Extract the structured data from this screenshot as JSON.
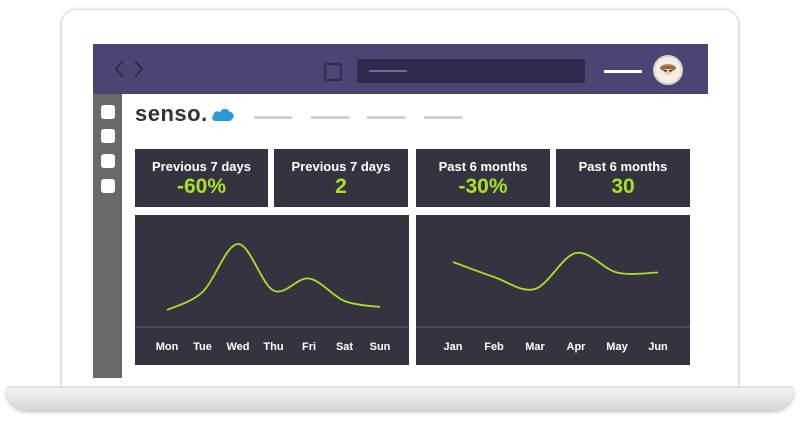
{
  "app": {
    "logo_text": "senso.",
    "logo_icon": "cloud-icon"
  },
  "colors": {
    "topbar": "#4a4673",
    "panel": "#363341",
    "accent": "#a6e22a",
    "sidebar": "#696969"
  },
  "stats": [
    {
      "label": "Previous 7 days",
      "value": "-60%"
    },
    {
      "label": "Previous 7 days",
      "value": "2"
    },
    {
      "label": "Past 6 months",
      "value": "-30%"
    },
    {
      "label": "Past 6 months",
      "value": "30"
    }
  ],
  "chart_data": [
    {
      "type": "line",
      "categories": [
        "Mon",
        "Tue",
        "Wed",
        "Thu",
        "Fri",
        "Sat",
        "Sun"
      ],
      "series": [
        {
          "values": [
            1,
            2.2,
            5.4,
            2.3,
            3.1,
            1.6,
            1.2
          ]
        }
      ],
      "ylim": [
        0,
        6
      ],
      "grid": false
    },
    {
      "type": "line",
      "categories": [
        "Jan",
        "Feb",
        "Mar",
        "Apr",
        "May",
        "Jun"
      ],
      "series": [
        {
          "values": [
            4.2,
            3.2,
            2.4,
            4.8,
            3.5,
            3.5
          ]
        }
      ],
      "ylim": [
        0,
        6
      ],
      "grid": false
    }
  ]
}
